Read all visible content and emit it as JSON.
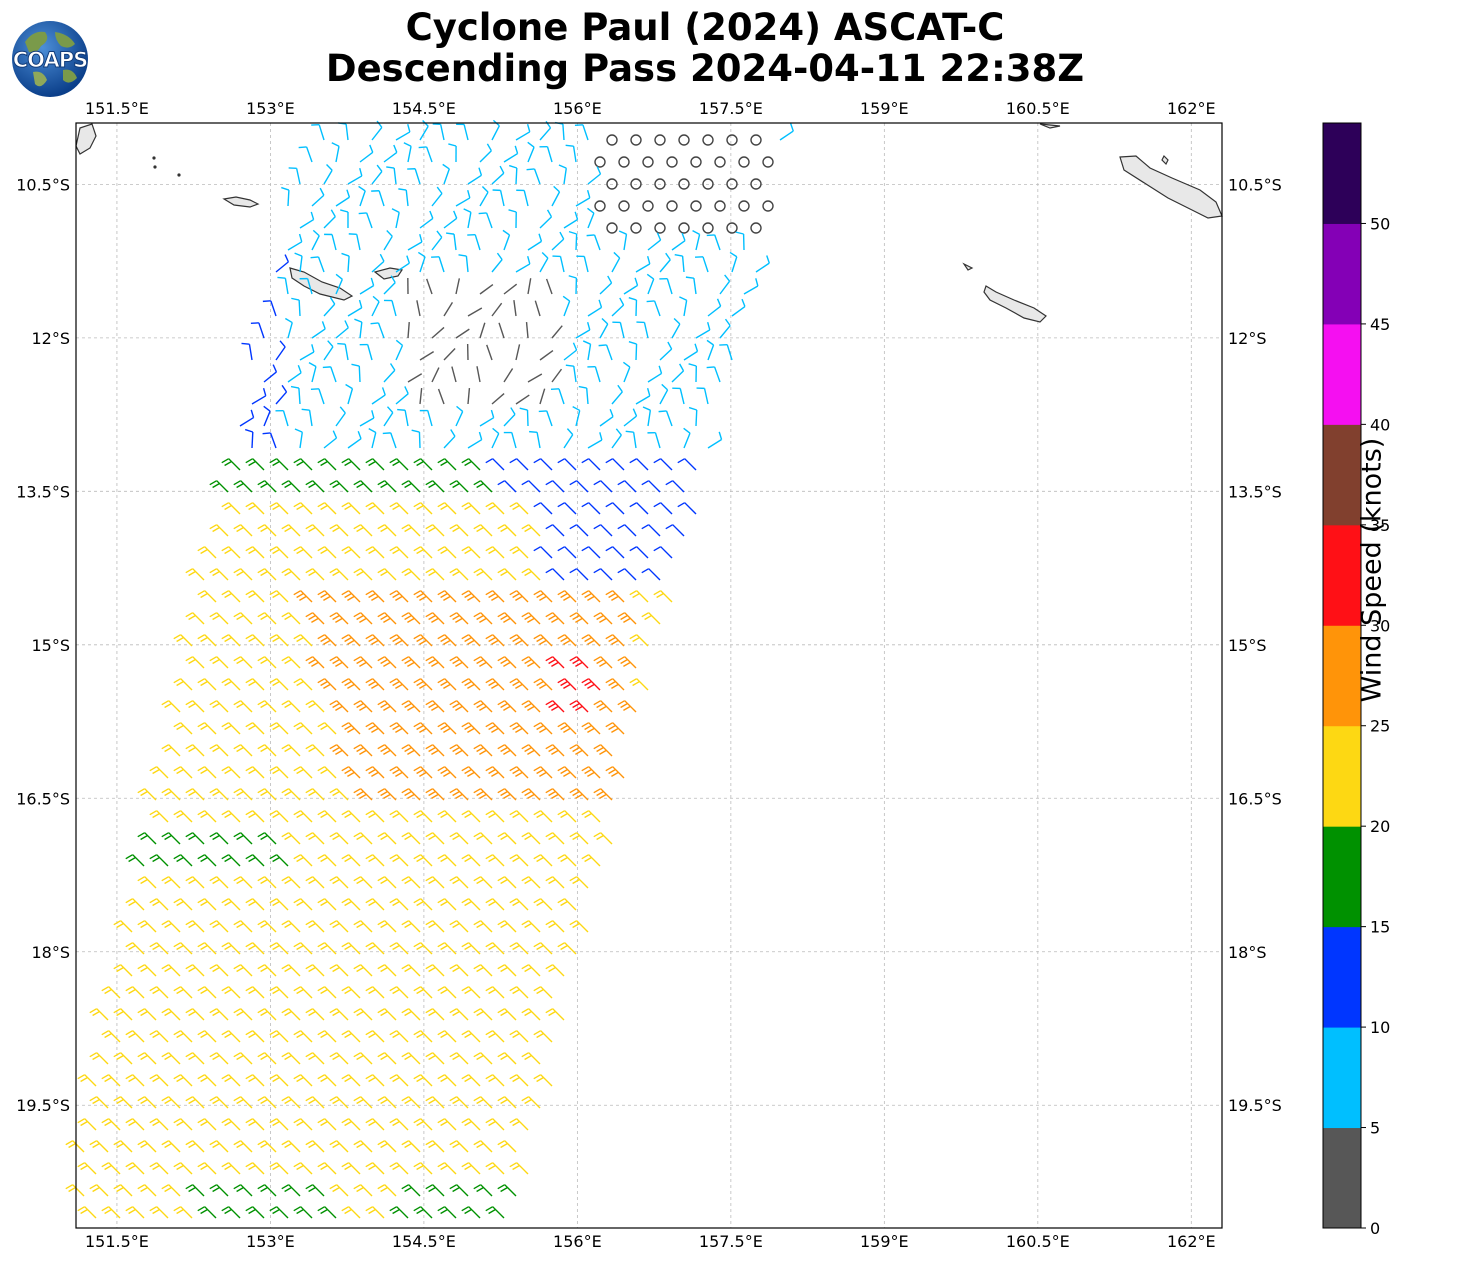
{
  "title_line1": "Cyclone Paul (2024) ASCAT-C",
  "title_line2": "Descending Pass 2024-04-11 22:38Z",
  "logo_text": "COAPS",
  "colorbar": {
    "label": "Wind Speed (knots)",
    "ticks": [
      "0",
      "5",
      "10",
      "15",
      "20",
      "25",
      "30",
      "35",
      "40",
      "45",
      "50"
    ],
    "colors": [
      "#575757",
      "#00bfff",
      "#0036ff",
      "#009100",
      "#fdd813",
      "#ff9409",
      "#ff1016",
      "#81402e",
      "#f50ff1",
      "#8400b6",
      "#2d0059"
    ]
  },
  "map": {
    "lon_labels": [
      "151.5°E",
      "153°E",
      "154.5°E",
      "156°E",
      "157.5°E",
      "159°E",
      "160.5°E",
      "162°E"
    ],
    "lat_labels": [
      "10.5°S",
      "12°S",
      "13.5°S",
      "15°S",
      "16.5°S",
      "18°S",
      "19.5°S"
    ],
    "lon_values": [
      151.5,
      153,
      154.5,
      156,
      157.5,
      159,
      160.5,
      162
    ],
    "lat_values": [
      -10.5,
      -12,
      -13.5,
      -15,
      -16.5,
      -18,
      -19.5
    ],
    "lon_range": [
      151.1,
      162.3
    ],
    "lat_range": [
      -20.7,
      -9.9
    ]
  }
}
